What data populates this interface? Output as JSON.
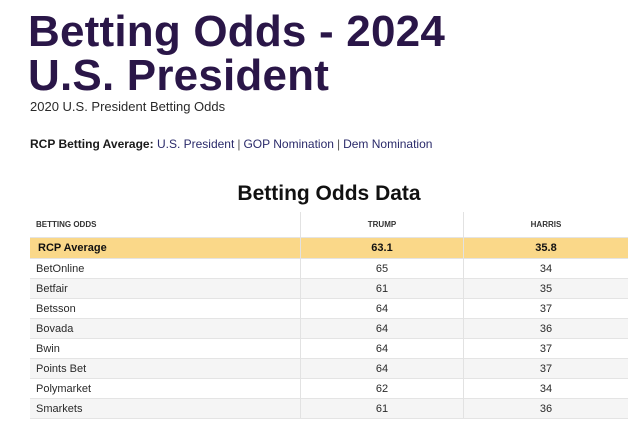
{
  "header": {
    "title_line1": "Betting Odds - 2024",
    "title_line2": "U.S. President",
    "subtitle": "2020 U.S. President Betting Odds"
  },
  "rcp_average_nav": {
    "label": "RCP Betting Average:",
    "links": [
      "U.S. President",
      "GOP Nomination",
      "Dem Nomination"
    ],
    "separator": "|"
  },
  "table": {
    "title": "Betting Odds Data",
    "columns": [
      "BETTING ODDS",
      "TRUMP",
      "HARRIS"
    ],
    "average_row": {
      "name": "RCP Average",
      "trump": "63.1",
      "harris": "35.8"
    },
    "rows": [
      {
        "name": "BetOnline",
        "trump": "65",
        "harris": "34"
      },
      {
        "name": "Betfair",
        "trump": "61",
        "harris": "35"
      },
      {
        "name": "Betsson",
        "trump": "64",
        "harris": "37"
      },
      {
        "name": "Bovada",
        "trump": "64",
        "harris": "36"
      },
      {
        "name": "Bwin",
        "trump": "64",
        "harris": "37"
      },
      {
        "name": "Points Bet",
        "trump": "64",
        "harris": "37"
      },
      {
        "name": "Polymarket",
        "trump": "62",
        "harris": "34"
      },
      {
        "name": "Smarkets",
        "trump": "61",
        "harris": "36"
      }
    ]
  },
  "colors": {
    "title": "#2a1648",
    "average_highlight": "#fad889",
    "row_stripe": "#f5f5f5"
  }
}
